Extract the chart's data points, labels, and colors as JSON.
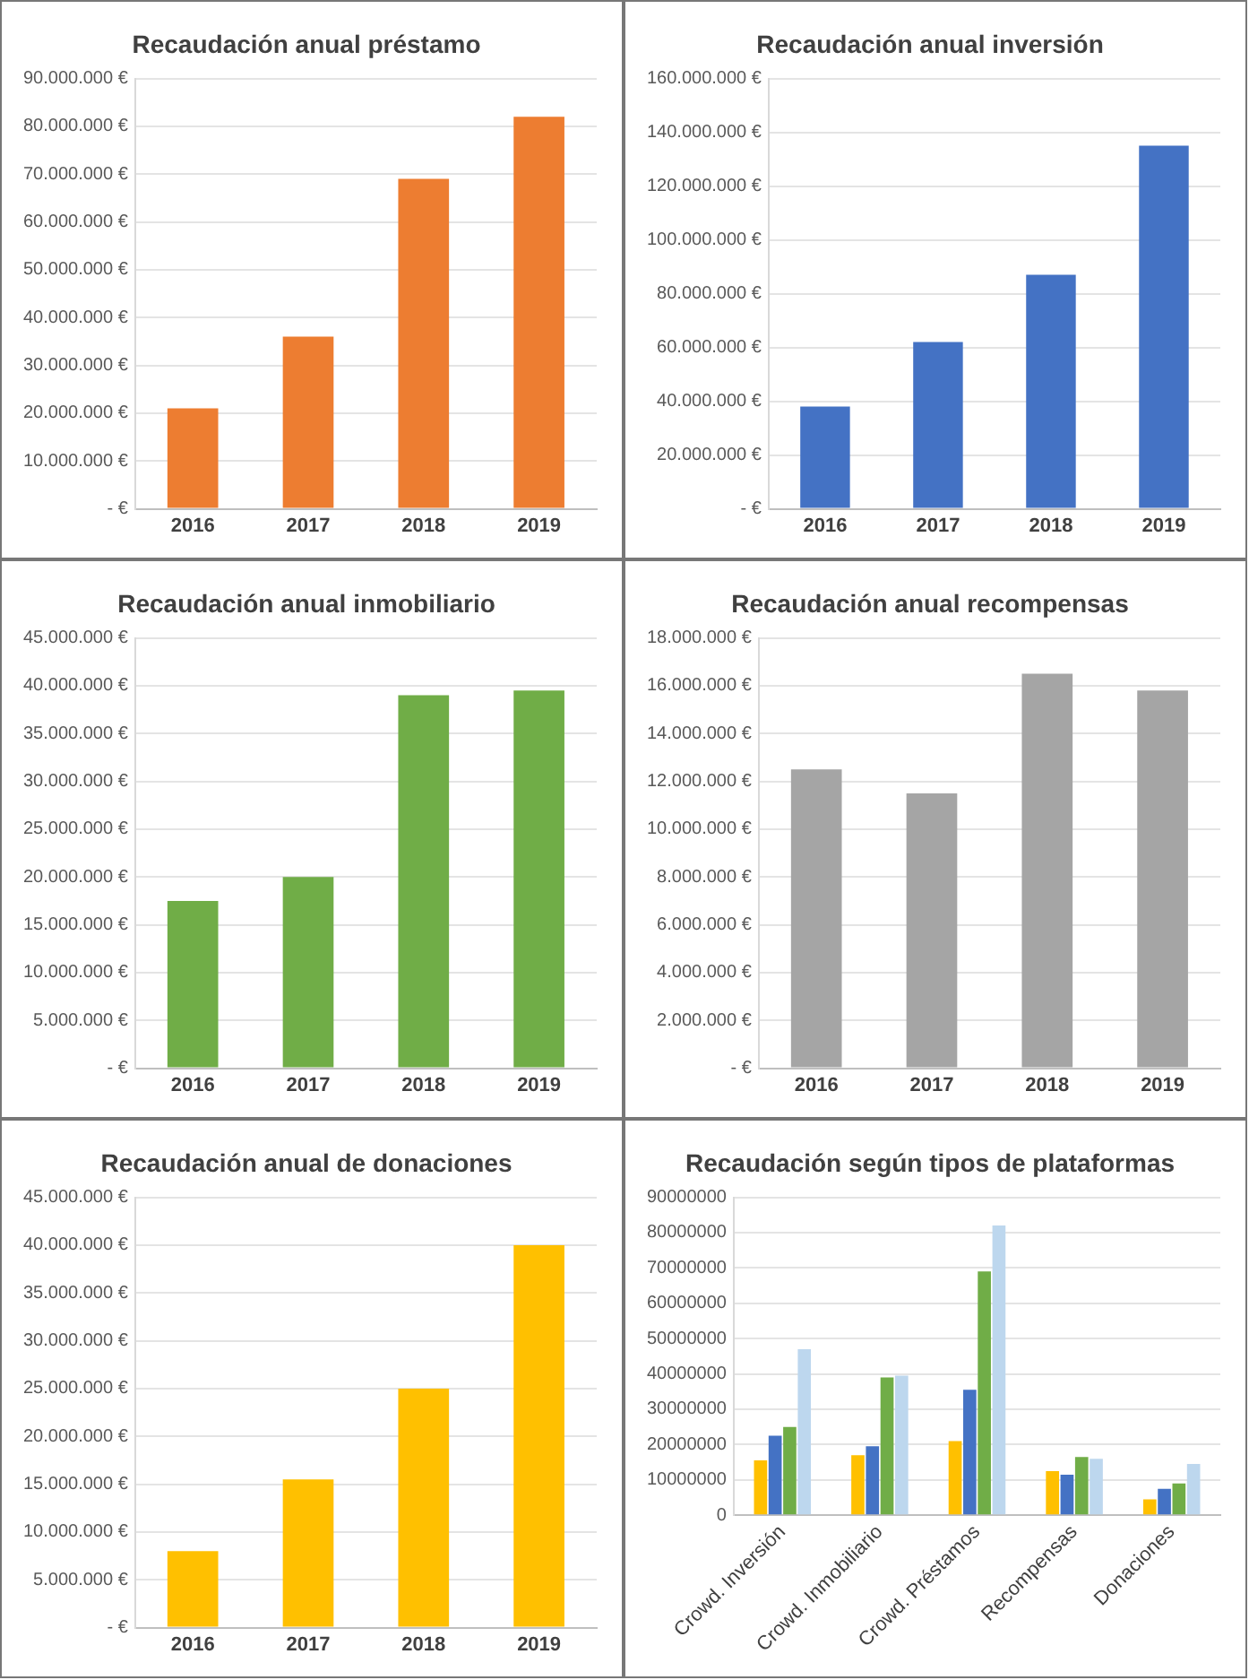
{
  "chart_data": [
    {
      "type": "bar",
      "title": "Recaudación anual préstamo",
      "categories": [
        "2016",
        "2017",
        "2018",
        "2019"
      ],
      "values": [
        21000000,
        36000000,
        69000000,
        82000000
      ],
      "color": "#ed7d31",
      "ylim": [
        0,
        90000000
      ],
      "yticks": [
        {
          "value": 0,
          "label": "- €"
        },
        {
          "value": 10000000,
          "label": "10.000.000 €"
        },
        {
          "value": 20000000,
          "label": "20.000.000 €"
        },
        {
          "value": 30000000,
          "label": "30.000.000 €"
        },
        {
          "value": 40000000,
          "label": "40.000.000 €"
        },
        {
          "value": 50000000,
          "label": "50.000.000 €"
        },
        {
          "value": 60000000,
          "label": "60.000.000 €"
        },
        {
          "value": 70000000,
          "label": "70.000.000 €"
        },
        {
          "value": 80000000,
          "label": "80.000.000 €"
        },
        {
          "value": 90000000,
          "label": "90.000.000 €"
        }
      ],
      "grid": "y",
      "legend": false
    },
    {
      "type": "bar",
      "title": "Recaudación anual inversión",
      "categories": [
        "2016",
        "2017",
        "2018",
        "2019"
      ],
      "values": [
        38000000,
        62000000,
        87000000,
        135000000
      ],
      "color": "#4472c4",
      "ylim": [
        0,
        160000000
      ],
      "yticks": [
        {
          "value": 0,
          "label": "- €"
        },
        {
          "value": 20000000,
          "label": "20.000.000 €"
        },
        {
          "value": 40000000,
          "label": "40.000.000 €"
        },
        {
          "value": 60000000,
          "label": "60.000.000 €"
        },
        {
          "value": 80000000,
          "label": "80.000.000 €"
        },
        {
          "value": 100000000,
          "label": "100.000.000 €"
        },
        {
          "value": 120000000,
          "label": "120.000.000 €"
        },
        {
          "value": 140000000,
          "label": "140.000.000 €"
        },
        {
          "value": 160000000,
          "label": "160.000.000 €"
        }
      ],
      "grid": "y",
      "legend": false
    },
    {
      "type": "bar",
      "title": "Recaudación anual inmobiliario",
      "categories": [
        "2016",
        "2017",
        "2018",
        "2019"
      ],
      "values": [
        17500000,
        20000000,
        39000000,
        39500000
      ],
      "color": "#70ad47",
      "ylim": [
        0,
        45000000
      ],
      "yticks": [
        {
          "value": 0,
          "label": "- €"
        },
        {
          "value": 5000000,
          "label": "5.000.000 €"
        },
        {
          "value": 10000000,
          "label": "10.000.000 €"
        },
        {
          "value": 15000000,
          "label": "15.000.000 €"
        },
        {
          "value": 20000000,
          "label": "20.000.000 €"
        },
        {
          "value": 25000000,
          "label": "25.000.000 €"
        },
        {
          "value": 30000000,
          "label": "30.000.000 €"
        },
        {
          "value": 35000000,
          "label": "35.000.000 €"
        },
        {
          "value": 40000000,
          "label": "40.000.000 €"
        },
        {
          "value": 45000000,
          "label": "45.000.000 €"
        }
      ],
      "grid": "y",
      "legend": false
    },
    {
      "type": "bar",
      "title": "Recaudación anual recompensas",
      "categories": [
        "2016",
        "2017",
        "2018",
        "2019"
      ],
      "values": [
        12500000,
        11500000,
        16500000,
        15800000
      ],
      "color": "#a5a5a5",
      "ylim": [
        0,
        18000000
      ],
      "yticks": [
        {
          "value": 0,
          "label": "- €"
        },
        {
          "value": 2000000,
          "label": "2.000.000 €"
        },
        {
          "value": 4000000,
          "label": "4.000.000 €"
        },
        {
          "value": 6000000,
          "label": "6.000.000 €"
        },
        {
          "value": 8000000,
          "label": "8.000.000 €"
        },
        {
          "value": 10000000,
          "label": "10.000.000 €"
        },
        {
          "value": 12000000,
          "label": "12.000.000 €"
        },
        {
          "value": 14000000,
          "label": "14.000.000 €"
        },
        {
          "value": 16000000,
          "label": "16.000.000 €"
        },
        {
          "value": 18000000,
          "label": "18.000.000 €"
        }
      ],
      "grid": "y",
      "legend": false
    },
    {
      "type": "bar",
      "title": "Recaudación anual de donaciones",
      "categories": [
        "2016",
        "2017",
        "2018",
        "2019"
      ],
      "values": [
        8000000,
        15500000,
        25000000,
        40000000
      ],
      "color": "#ffc000",
      "ylim": [
        0,
        45000000
      ],
      "yticks": [
        {
          "value": 0,
          "label": "- €"
        },
        {
          "value": 5000000,
          "label": "5.000.000 €"
        },
        {
          "value": 10000000,
          "label": "10.000.000 €"
        },
        {
          "value": 15000000,
          "label": "15.000.000 €"
        },
        {
          "value": 20000000,
          "label": "20.000.000 €"
        },
        {
          "value": 25000000,
          "label": "25.000.000 €"
        },
        {
          "value": 30000000,
          "label": "30.000.000 €"
        },
        {
          "value": 35000000,
          "label": "35.000.000 €"
        },
        {
          "value": 40000000,
          "label": "40.000.000 €"
        },
        {
          "value": 45000000,
          "label": "45.000.000 €"
        }
      ],
      "grid": "y",
      "legend": false
    },
    {
      "type": "bar",
      "title": "Recaudación según tipos de plataformas",
      "categories": [
        "Crowd. Inversión",
        "Crowd. Inmobiliario",
        "Crowd. Préstamos",
        "Recompensas",
        "Donaciones"
      ],
      "series": [
        {
          "color": "#ffc000",
          "values": [
            15500000,
            17000000,
            21000000,
            12500000,
            4500000
          ]
        },
        {
          "color": "#4472c4",
          "values": [
            22500000,
            19500000,
            35500000,
            11500000,
            7500000
          ]
        },
        {
          "color": "#70ad47",
          "values": [
            25000000,
            39000000,
            69000000,
            16500000,
            9000000
          ]
        },
        {
          "color": "#bdd7ee",
          "values": [
            47000000,
            39500000,
            82000000,
            16000000,
            14500000
          ]
        }
      ],
      "ylim": [
        0,
        90000000
      ],
      "yticks": [
        0,
        10000000,
        20000000,
        30000000,
        40000000,
        50000000,
        60000000,
        70000000,
        80000000,
        90000000
      ],
      "grid": "y",
      "legend": false
    }
  ]
}
